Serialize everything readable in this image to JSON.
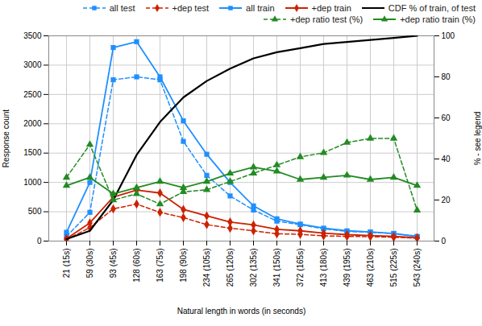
{
  "chart_data": {
    "type": "line",
    "xlabel": "Natural length in words (in seconds)",
    "ylabel": "Response count",
    "y2label": "% - see legend",
    "categories": [
      "21 (15s)",
      "59 (30s)",
      "93 (45s)",
      "128 (60s)",
      "163 (75s)",
      "198 (90s)",
      "234 (105s)",
      "265 (120s)",
      "302 (135s)",
      "341 (150s)",
      "372 (165s)",
      "413 (180s)",
      "439 (195s)",
      "463 (210s)",
      "515 (225s)",
      "543 (240s)"
    ],
    "ylim": [
      0,
      3500
    ],
    "yticks": [
      0,
      500,
      1000,
      1500,
      2000,
      2500,
      3000,
      3500
    ],
    "y2lim": [
      0,
      100
    ],
    "y2ticks": [
      0,
      20,
      40,
      60,
      80,
      100
    ],
    "grid": true,
    "legend": "upper right",
    "series": [
      {
        "name": "all test",
        "color": "#1e90ff",
        "marker": "square",
        "line_style": "dashed",
        "values": [
          80,
          490,
          2750,
          2800,
          2750,
          1700,
          1120,
          770,
          530,
          340,
          280,
          210,
          165,
          150,
          130,
          75
        ]
      },
      {
        "name": "+dep test",
        "color": "#cc2200",
        "marker": "diamond",
        "line_style": "dashed",
        "values": [
          25,
          230,
          550,
          630,
          490,
          400,
          280,
          220,
          175,
          125,
          115,
          90,
          80,
          75,
          65,
          50
        ]
      },
      {
        "name": "all train",
        "color": "#1e90ff",
        "marker": "square",
        "line_style": "solid",
        "values": [
          150,
          1000,
          3300,
          3400,
          2800,
          2050,
          1480,
          1000,
          600,
          380,
          290,
          220,
          175,
          155,
          130,
          80
        ]
      },
      {
        "name": "+dep train",
        "color": "#cc2200",
        "marker": "diamond",
        "line_style": "solid",
        "values": [
          40,
          310,
          750,
          870,
          820,
          540,
          430,
          325,
          275,
          200,
          175,
          135,
          110,
          95,
          80,
          55
        ]
      },
      {
        "name": "CDF % of train, of test",
        "color": "#000000",
        "line_style": "solid",
        "axis": "y2",
        "values": [
          1,
          5,
          20,
          42,
          58,
          70,
          78,
          84,
          89,
          92,
          94,
          96,
          97,
          98,
          99,
          100
        ]
      },
      {
        "name": "+dep ratio test (%)",
        "color": "#228b22",
        "marker": "triangle",
        "line_style": "dashed",
        "axis": "y2",
        "values": [
          31,
          47,
          20,
          23,
          18,
          24,
          25,
          29,
          33,
          37,
          41,
          43,
          48,
          50,
          50,
          15
        ]
      },
      {
        "name": "+dep ratio train (%)",
        "color": "#228b22",
        "marker": "triangle",
        "line_style": "solid",
        "axis": "y2",
        "values": [
          27,
          31,
          23,
          26,
          29,
          26,
          29,
          33,
          36,
          34,
          30,
          31,
          32,
          30,
          31,
          27
        ]
      }
    ]
  }
}
